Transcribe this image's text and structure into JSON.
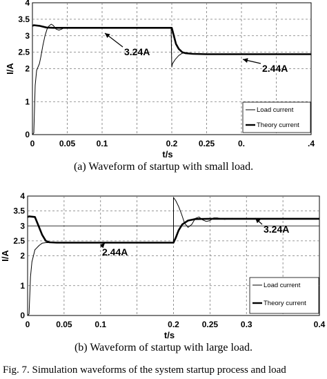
{
  "chart_data": [
    {
      "type": "line",
      "xlabel": "t/s",
      "ylabel": "I/A",
      "xlim": [
        0,
        0.4
      ],
      "ylim": [
        0,
        4
      ],
      "xticks": [
        "0",
        "0.05",
        "0.1",
        "0.15",
        "0.2",
        "0.25",
        "0.3",
        "0.35",
        "0.4"
      ],
      "xtick_labels_shown": [
        "0",
        "0.05",
        "0.1",
        "",
        "0.2",
        "0.25",
        "0.",
        "",
        ".4"
      ],
      "yticks": [
        0,
        1,
        2,
        2.5,
        3,
        3.5,
        4
      ],
      "ytick_labels": [
        "0",
        "1",
        "2",
        "2.5",
        "3",
        "3.5",
        "4"
      ],
      "grid": true,
      "legend": {
        "placement": "bottom-right",
        "entries": [
          "Load current",
          "Theory current"
        ]
      },
      "annotations": [
        {
          "text": "3.24A",
          "x": 0.15,
          "y": 3.24
        },
        {
          "text": "2.44A",
          "x": 0.3,
          "y": 2.44
        }
      ],
      "series": [
        {
          "name": "Load current",
          "x": [
            0,
            0.002,
            0.004,
            0.006,
            0.008,
            0.01,
            0.012,
            0.015,
            0.018,
            0.021,
            0.024,
            0.027,
            0.03,
            0.034,
            0.038,
            0.042,
            0.046,
            0.05,
            0.06,
            0.08,
            0.1,
            0.15,
            0.199,
            0.2,
            0.201,
            0.205,
            0.21,
            0.215,
            0.22,
            0.225,
            0.23,
            0.24,
            0.26,
            0.3,
            0.35,
            0.4
          ],
          "y": [
            0,
            0.05,
            1.5,
            1.95,
            2.05,
            2.15,
            2.35,
            2.7,
            3.0,
            3.2,
            3.3,
            3.35,
            3.31,
            3.2,
            3.17,
            3.2,
            3.25,
            3.24,
            3.24,
            3.24,
            3.24,
            3.24,
            3.24,
            2.05,
            2.15,
            2.28,
            2.4,
            2.47,
            2.48,
            2.46,
            2.44,
            2.44,
            2.44,
            2.44,
            2.44,
            2.44
          ]
        },
        {
          "name": "Theory current",
          "x": [
            0,
            0.002,
            0.01,
            0.02,
            0.03,
            0.04,
            0.05,
            0.1,
            0.2,
            0.2,
            0.203,
            0.206,
            0.21,
            0.215,
            0.22,
            0.23,
            0.25,
            0.3,
            0.4
          ],
          "y": [
            3.3,
            3.32,
            3.3,
            3.25,
            3.24,
            3.24,
            3.24,
            3.24,
            3.24,
            3.24,
            3.0,
            2.75,
            2.6,
            2.5,
            2.47,
            2.45,
            2.44,
            2.44,
            2.44
          ]
        }
      ]
    },
    {
      "type": "line",
      "xlabel": "t/s",
      "ylabel": "I/A",
      "xlim": [
        0,
        0.4
      ],
      "ylim": [
        0,
        4
      ],
      "xticks": [
        "0",
        "0.05",
        "0.1",
        "0.15",
        "0.2",
        "0.25",
        "0.3",
        "0.35",
        "0.4"
      ],
      "xtick_labels_shown": [
        "0",
        "0.05",
        "0.1",
        "",
        "0.2",
        "0.25",
        "0.3",
        "",
        "0.4"
      ],
      "yticks": [
        0,
        1,
        2,
        2.5,
        3,
        3.5,
        4
      ],
      "ytick_labels": [
        "0",
        "1",
        "2",
        "2.5",
        "3",
        "3.5",
        "4"
      ],
      "grid": true,
      "legend": {
        "placement": "bottom-right",
        "entries": [
          "Load current",
          "Theory current"
        ]
      },
      "annotations": [
        {
          "text": "2.44A",
          "x": 0.1,
          "y": 2.44
        },
        {
          "text": "3.24A",
          "x": 0.3,
          "y": 3.24
        }
      ],
      "series": [
        {
          "name": "Load current",
          "x": [
            0,
            0.002,
            0.004,
            0.006,
            0.008,
            0.01,
            0.012,
            0.014,
            0.016,
            0.02,
            0.025,
            0.03,
            0.035,
            0.04,
            0.05,
            0.1,
            0.15,
            0.199,
            0.2,
            0.2,
            0.203,
            0.207,
            0.211,
            0.215,
            0.22,
            0.225,
            0.23,
            0.235,
            0.24,
            0.245,
            0.25,
            0.255,
            0.26,
            0.27,
            0.28,
            0.29,
            0.3,
            0.35,
            0.4
          ],
          "y": [
            0,
            0.05,
            1.3,
            1.8,
            2.0,
            2.2,
            2.25,
            2.3,
            2.35,
            2.42,
            2.44,
            2.44,
            2.44,
            2.44,
            2.44,
            2.44,
            2.44,
            2.44,
            2.44,
            3.95,
            3.85,
            3.65,
            3.4,
            3.1,
            2.95,
            3.05,
            3.25,
            3.3,
            3.2,
            3.15,
            3.18,
            3.27,
            3.27,
            3.22,
            3.25,
            3.24,
            3.24,
            3.24,
            3.24
          ]
        },
        {
          "name": "Theory current",
          "x": [
            0,
            0.002,
            0.01,
            0.015,
            0.02,
            0.025,
            0.03,
            0.04,
            0.05,
            0.1,
            0.2,
            0.2,
            0.203,
            0.207,
            0.212,
            0.22,
            0.23,
            0.25,
            0.3,
            0.4
          ],
          "y": [
            3.3,
            3.32,
            3.3,
            3.0,
            2.7,
            2.5,
            2.45,
            2.44,
            2.44,
            2.44,
            2.44,
            2.44,
            2.6,
            2.85,
            3.05,
            3.18,
            3.23,
            3.24,
            3.24,
            3.24
          ]
        }
      ]
    }
  ],
  "captions": {
    "a": "(a) Waveform of startup with small load.",
    "b": "(b) Waveform of startup with large load.",
    "figure": "Fig. 7. Simulation waveforms of the system startup process and load"
  }
}
